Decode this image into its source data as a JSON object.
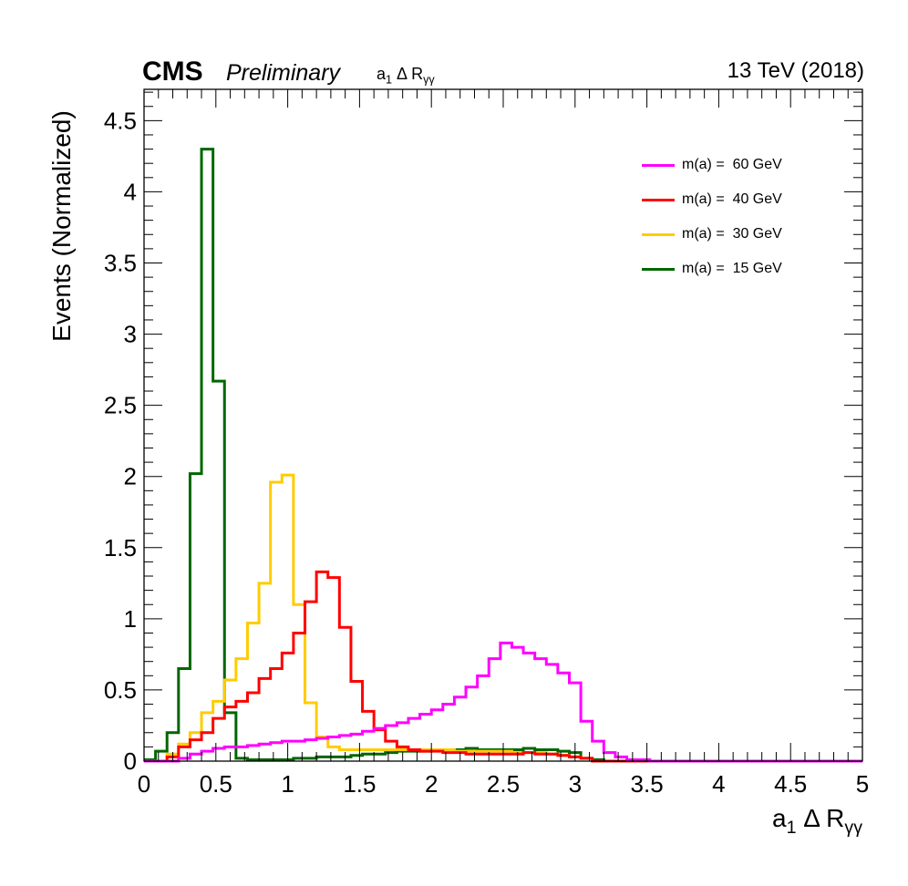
{
  "header": {
    "experiment": "CMS",
    "status": "Preliminary",
    "subtitle_main": "a",
    "subtitle_sub": "1",
    "subtitle_rest": " Δ R",
    "subtitle_sub2": "γγ",
    "lumi": "13 TeV (2018)"
  },
  "axes": {
    "xlabel_main": "a",
    "xlabel_sub": "1",
    "xlabel_rest": " Δ R",
    "xlabel_sub2": "γγ",
    "ylabel": "Events (Normalized)"
  },
  "chart_data": {
    "type": "line",
    "style": "step-histogram",
    "xlim": [
      0,
      5
    ],
    "ylim": [
      0,
      4.72
    ],
    "bin_width": 0.08,
    "x_ticks": [
      0,
      0.5,
      1,
      1.5,
      2,
      2.5,
      3,
      3.5,
      4,
      4.5,
      5
    ],
    "x_tick_labels": [
      "0",
      "0.5",
      "1",
      "1.5",
      "2",
      "2.5",
      "3",
      "3.5",
      "4",
      "4.5",
      "5"
    ],
    "y_ticks": [
      0,
      0.5,
      1,
      1.5,
      2,
      2.5,
      3,
      3.5,
      4,
      4.5
    ],
    "y_tick_labels": [
      "0",
      "0.5",
      "1",
      "1.5",
      "2",
      "2.5",
      "3",
      "3.5",
      "4",
      "4.5"
    ],
    "grid": false,
    "legend_position": "top-right",
    "series": [
      {
        "name": "m(a) =  60 GeV",
        "color": "#ff00ff",
        "values": [
          0,
          0,
          0,
          0.02,
          0.05,
          0.07,
          0.09,
          0.1,
          0.1,
          0.11,
          0.12,
          0.13,
          0.14,
          0.14,
          0.15,
          0.16,
          0.17,
          0.18,
          0.19,
          0.21,
          0.23,
          0.25,
          0.27,
          0.3,
          0.33,
          0.36,
          0.4,
          0.45,
          0.52,
          0.6,
          0.72,
          0.83,
          0.8,
          0.76,
          0.72,
          0.68,
          0.62,
          0.55,
          0.28,
          0.14,
          0.06,
          0.03,
          0.01,
          0.01,
          0,
          0,
          0,
          0,
          0,
          0,
          0,
          0,
          0,
          0,
          0,
          0,
          0,
          0,
          0,
          0,
          0,
          0,
          0
        ]
      },
      {
        "name": "m(a) =  40 GeV",
        "color": "#ff0000",
        "values": [
          0,
          0,
          0.03,
          0.1,
          0.15,
          0.2,
          0.3,
          0.38,
          0.42,
          0.48,
          0.58,
          0.65,
          0.76,
          0.9,
          1.12,
          1.33,
          1.29,
          0.94,
          0.56,
          0.35,
          0.22,
          0.14,
          0.1,
          0.08,
          0.07,
          0.07,
          0.06,
          0.06,
          0.05,
          0.05,
          0.05,
          0.05,
          0.05,
          0.06,
          0.05,
          0.05,
          0.04,
          0.03,
          0.02,
          0,
          0,
          0,
          0,
          0,
          0,
          0,
          0,
          0,
          0,
          0,
          0,
          0,
          0,
          0,
          0,
          0,
          0,
          0,
          0,
          0,
          0,
          0,
          0
        ]
      },
      {
        "name": "m(a) =  30 GeV",
        "color": "#ffcc00",
        "values": [
          0,
          0,
          0.05,
          0.12,
          0.2,
          0.34,
          0.42,
          0.57,
          0.72,
          0.97,
          1.25,
          1.96,
          2.01,
          1.1,
          0.41,
          0.17,
          0.1,
          0.08,
          0.08,
          0.08,
          0.08,
          0.08,
          0.08,
          0.08,
          0.08,
          0.08,
          0.08,
          0.07,
          0.07,
          0.07,
          0.07,
          0.07,
          0.06,
          0.06,
          0.06,
          0.05,
          0.04,
          0.03,
          0.02,
          0,
          0,
          0,
          0,
          0,
          0,
          0,
          0,
          0,
          0,
          0,
          0,
          0,
          0,
          0,
          0,
          0,
          0,
          0,
          0,
          0,
          0,
          0,
          0
        ]
      },
      {
        "name": "m(a) =  15 GeV",
        "color": "#006600",
        "values": [
          0.01,
          0.07,
          0.2,
          0.65,
          2.02,
          4.3,
          2.67,
          0.34,
          0.02,
          0.01,
          0.01,
          0.01,
          0.01,
          0.02,
          0.02,
          0.03,
          0.03,
          0.03,
          0.04,
          0.05,
          0.05,
          0.06,
          0.07,
          0.07,
          0.07,
          0.08,
          0.08,
          0.08,
          0.09,
          0.08,
          0.08,
          0.08,
          0.08,
          0.09,
          0.08,
          0.08,
          0.07,
          0.06,
          0.02,
          0.01,
          0,
          0,
          0,
          0,
          0,
          0,
          0,
          0,
          0,
          0,
          0,
          0,
          0,
          0,
          0,
          0,
          0,
          0,
          0,
          0,
          0,
          0,
          0
        ]
      }
    ]
  }
}
